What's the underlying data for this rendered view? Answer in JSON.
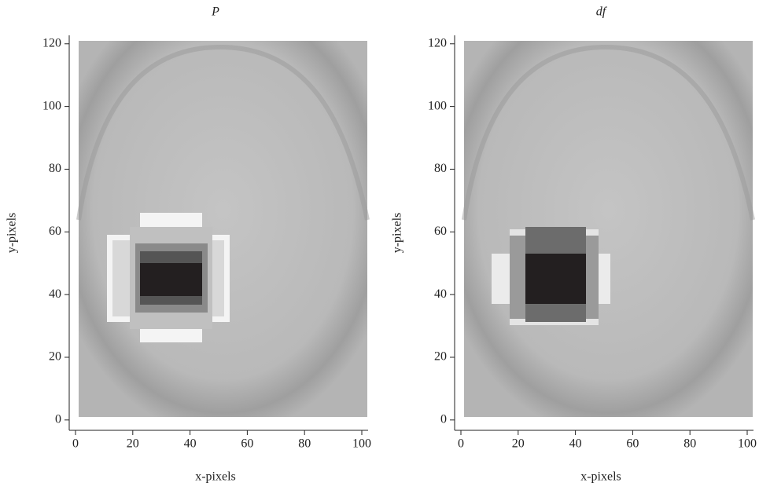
{
  "chart_data": [
    {
      "type": "image",
      "title": "P",
      "xlabel": "x-pixels",
      "ylabel": "y-pixels",
      "xlim": [
        -2.2,
        102.2
      ],
      "ylim": [
        -3.3,
        122.7
      ],
      "xticks": [
        0,
        20,
        40,
        60,
        80,
        100
      ],
      "yticks": [
        0,
        20,
        40,
        60,
        80,
        100,
        120
      ]
    },
    {
      "type": "image",
      "title": "df",
      "xlabel": "x-pixels",
      "ylabel": "y-pixels",
      "xlim": [
        -2.2,
        102.2
      ],
      "ylim": [
        -3.3,
        122.7
      ],
      "xticks": [
        0,
        20,
        40,
        60,
        80,
        100
      ],
      "yticks": [
        0,
        20,
        40,
        60,
        80,
        100,
        120
      ]
    }
  ]
}
